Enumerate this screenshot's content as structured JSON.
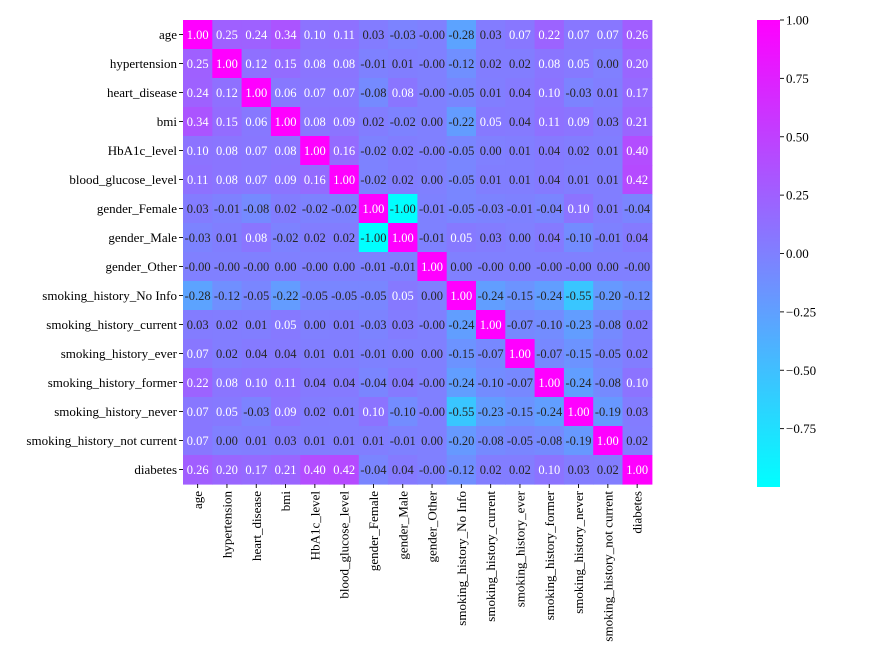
{
  "chart_data": {
    "type": "heatmap",
    "title": "",
    "xlabel": "",
    "ylabel": "",
    "labels": [
      "age",
      "hypertension",
      "heart_disease",
      "bmi",
      "HbA1c_level",
      "blood_glucose_level",
      "gender_Female",
      "gender_Male",
      "gender_Other",
      "smoking_history_No Info",
      "smoking_history_current",
      "smoking_history_ever",
      "smoking_history_former",
      "smoking_history_never",
      "smoking_history_not current",
      "diabetes"
    ],
    "values": [
      [
        1.0,
        0.25,
        0.24,
        0.34,
        0.1,
        0.11,
        0.03,
        -0.03,
        -0.0,
        -0.28,
        0.03,
        0.07,
        0.22,
        0.07,
        0.07,
        0.26
      ],
      [
        0.25,
        1.0,
        0.12,
        0.15,
        0.08,
        0.08,
        -0.01,
        0.01,
        -0.0,
        -0.12,
        0.02,
        0.02,
        0.08,
        0.05,
        0.0,
        0.2
      ],
      [
        0.24,
        0.12,
        1.0,
        0.06,
        0.07,
        0.07,
        -0.08,
        0.08,
        -0.0,
        -0.05,
        0.01,
        0.04,
        0.1,
        -0.03,
        0.01,
        0.17
      ],
      [
        0.34,
        0.15,
        0.06,
        1.0,
        0.08,
        0.09,
        0.02,
        -0.02,
        0.0,
        -0.22,
        0.05,
        0.04,
        0.11,
        0.09,
        0.03,
        0.21
      ],
      [
        0.1,
        0.08,
        0.07,
        0.08,
        1.0,
        0.16,
        -0.02,
        0.02,
        -0.0,
        -0.05,
        0.0,
        0.01,
        0.04,
        0.02,
        0.01,
        0.4
      ],
      [
        0.11,
        0.08,
        0.07,
        0.09,
        0.16,
        1.0,
        -0.02,
        0.02,
        0.0,
        -0.05,
        0.01,
        0.01,
        0.04,
        0.01,
        0.01,
        0.42
      ],
      [
        0.03,
        -0.01,
        -0.08,
        0.02,
        -0.02,
        -0.02,
        1.0,
        -1.0,
        -0.01,
        -0.05,
        -0.03,
        -0.01,
        -0.04,
        0.1,
        0.01,
        -0.04
      ],
      [
        -0.03,
        0.01,
        0.08,
        -0.02,
        0.02,
        0.02,
        -1.0,
        1.0,
        -0.01,
        0.05,
        0.03,
        0.0,
        0.04,
        -0.1,
        -0.01,
        0.04
      ],
      [
        -0.0,
        -0.0,
        -0.0,
        0.0,
        -0.0,
        0.0,
        -0.01,
        -0.01,
        1.0,
        0.0,
        -0.0,
        0.0,
        -0.0,
        -0.0,
        0.0,
        -0.0
      ],
      [
        -0.28,
        -0.12,
        -0.05,
        -0.22,
        -0.05,
        -0.05,
        -0.05,
        0.05,
        0.0,
        1.0,
        -0.24,
        -0.15,
        -0.24,
        -0.55,
        -0.2,
        -0.12
      ],
      [
        0.03,
        0.02,
        0.01,
        0.05,
        0.0,
        0.01,
        -0.03,
        0.03,
        -0.0,
        -0.24,
        1.0,
        -0.07,
        -0.1,
        -0.23,
        -0.08,
        0.02
      ],
      [
        0.07,
        0.02,
        0.04,
        0.04,
        0.01,
        0.01,
        -0.01,
        0.0,
        0.0,
        -0.15,
        -0.07,
        1.0,
        -0.07,
        -0.15,
        -0.05,
        0.02
      ],
      [
        0.22,
        0.08,
        0.1,
        0.11,
        0.04,
        0.04,
        -0.04,
        0.04,
        -0.0,
        -0.24,
        -0.1,
        -0.07,
        1.0,
        -0.24,
        -0.08,
        0.1
      ],
      [
        0.07,
        0.05,
        -0.03,
        0.09,
        0.02,
        0.01,
        0.1,
        -0.1,
        -0.0,
        -0.55,
        -0.23,
        -0.15,
        -0.24,
        1.0,
        -0.19,
        0.03
      ],
      [
        0.07,
        0.0,
        0.01,
        0.03,
        0.01,
        0.01,
        0.01,
        -0.01,
        0.0,
        -0.2,
        -0.08,
        -0.05,
        -0.08,
        -0.19,
        1.0,
        0.02
      ],
      [
        0.26,
        0.2,
        0.17,
        0.21,
        0.4,
        0.42,
        -0.04,
        0.04,
        -0.0,
        -0.12,
        0.02,
        0.02,
        0.1,
        0.03,
        0.02,
        1.0
      ]
    ],
    "value_range": [
      -1.0,
      1.0
    ],
    "colormap": "cool",
    "color_low": "#00ffff",
    "color_high": "#ff00ff",
    "colorbar_ticks": [
      1.0,
      0.75,
      0.5,
      0.25,
      0.0,
      -0.25,
      -0.5,
      -0.75
    ],
    "colorbar_tick_labels": [
      "1.00",
      "0.75",
      "0.50",
      "0.25",
      "0.00",
      "−0.25",
      "−0.50",
      "−0.75"
    ],
    "annotated": true,
    "grid": false,
    "legend": "colorbar-right"
  }
}
